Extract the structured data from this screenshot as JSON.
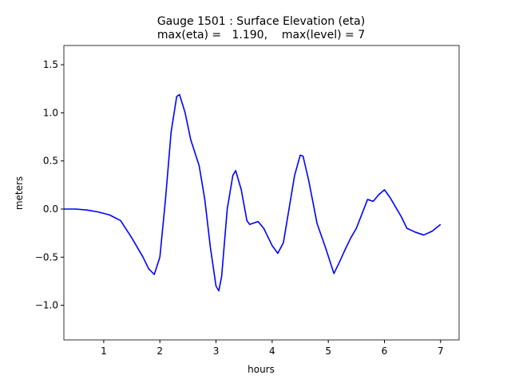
{
  "chart_data": {
    "type": "line",
    "title": "Gauge 1501 : Surface Elevation (eta)",
    "subtitle": "max(eta) =   1.190,    max(level) = 7",
    "x_label": "hours",
    "y_label": "meters",
    "x": [
      0.29,
      0.5,
      0.7,
      0.9,
      1.1,
      1.3,
      1.5,
      1.7,
      1.8,
      1.9,
      2.0,
      2.1,
      2.2,
      2.3,
      2.35,
      2.45,
      2.55,
      2.7,
      2.8,
      2.9,
      3.0,
      3.05,
      3.1,
      3.2,
      3.3,
      3.35,
      3.45,
      3.55,
      3.6,
      3.75,
      3.85,
      4.0,
      4.1,
      4.2,
      4.3,
      4.4,
      4.5,
      4.55,
      4.65,
      4.8,
      4.95,
      5.1,
      5.2,
      5.3,
      5.4,
      5.5,
      5.6,
      5.7,
      5.8,
      5.9,
      6.0,
      6.1,
      6.2,
      6.3,
      6.4,
      6.55,
      6.7,
      6.85,
      7.0
    ],
    "series": [
      {
        "color": "#0000ff",
        "values": [
          0.0,
          0.0,
          -0.01,
          -0.03,
          -0.06,
          -0.12,
          -0.3,
          -0.5,
          -0.62,
          -0.68,
          -0.5,
          0.1,
          0.8,
          1.17,
          1.19,
          1.0,
          0.72,
          0.45,
          0.1,
          -0.4,
          -0.8,
          -0.85,
          -0.7,
          0.0,
          0.35,
          0.4,
          0.2,
          -0.12,
          -0.16,
          -0.13,
          -0.2,
          -0.38,
          -0.46,
          -0.35,
          0.0,
          0.35,
          0.56,
          0.55,
          0.3,
          -0.15,
          -0.4,
          -0.67,
          -0.55,
          -0.42,
          -0.3,
          -0.2,
          -0.05,
          0.1,
          0.08,
          0.15,
          0.2,
          0.12,
          0.02,
          -0.08,
          -0.2,
          -0.24,
          -0.27,
          -0.23,
          -0.16
        ]
      }
    ],
    "xlim": [
      0.29,
      7.33
    ],
    "xticks": [
      1,
      2,
      3,
      4,
      5,
      6,
      7
    ],
    "ylim": [
      -1.36,
      1.7
    ],
    "yticks": [
      {
        "value": -1,
        "label": "−1.0"
      },
      {
        "value": -0.5,
        "label": "−0.5"
      },
      {
        "value": 0,
        "label": "0.0"
      },
      0.5,
      {
        "value": 1,
        "label": "1.0"
      },
      1.5
    ]
  }
}
